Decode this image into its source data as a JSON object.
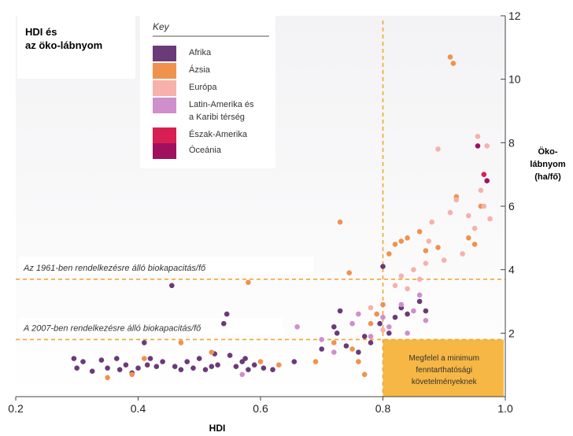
{
  "chart_data": {
    "type": "scatter",
    "title": "HDI és az öko-lábnyom",
    "title_lines": [
      "HDI és",
      "az öko-lábnyom"
    ],
    "xlabel": "HDI",
    "ylabel_lines": [
      "Öko-",
      "lábnyom",
      "(ha/fő)"
    ],
    "xlim": [
      0.2,
      1.0
    ],
    "ylim": [
      0,
      12
    ],
    "xticks": [
      "0.2",
      "0.4",
      "0.6",
      "0.8",
      "1.0"
    ],
    "yticks": [
      "2",
      "4",
      "6",
      "8",
      "10",
      "12"
    ],
    "legend": {
      "title": "Key",
      "placement": "top-left",
      "entries": [
        {
          "lines": [
            "Afrika"
          ],
          "color": "#6b3a78"
        },
        {
          "lines": [
            "Ázsia"
          ],
          "color": "#f0924d"
        },
        {
          "lines": [
            "Európa"
          ],
          "color": "#f6b1ac"
        },
        {
          "lines": [
            "Latin-Amerika és",
            "a Karibi térség"
          ],
          "color": "#cf8fcc"
        },
        {
          "lines": [
            "Észak-Amerika"
          ],
          "color": "#d81f53"
        },
        {
          "lines": [
            "Óceánia"
          ],
          "color": "#a0105f"
        }
      ]
    },
    "reference_lines": [
      {
        "value": 3.7,
        "label": "Az 1961-ben rendelkezésre álló biokapacitás/fő"
      },
      {
        "value": 1.8,
        "label": "A 2007-ben rendelkezésre álló biokapacitás/fő"
      }
    ],
    "vertical_line": 0.8,
    "sustainability_box": {
      "hdi_from": 0.8,
      "footprint_to": 1.8,
      "lines": [
        "Megfelel a minimum",
        "fenntarthatósági",
        "követelményeknek"
      ]
    },
    "grid": false,
    "series": [
      {
        "group": 0,
        "points": [
          [
            0.295,
            1.2
          ],
          [
            0.3,
            0.9
          ],
          [
            0.31,
            1.1
          ],
          [
            0.325,
            0.8
          ],
          [
            0.34,
            1.15
          ],
          [
            0.35,
            0.9
          ],
          [
            0.365,
            1.2
          ],
          [
            0.37,
            0.85
          ],
          [
            0.38,
            1.0
          ],
          [
            0.39,
            0.75
          ],
          [
            0.4,
            0.9
          ],
          [
            0.41,
            1.7
          ],
          [
            0.415,
            1.0
          ],
          [
            0.42,
            1.2
          ],
          [
            0.43,
            0.95
          ],
          [
            0.44,
            1.1
          ],
          [
            0.455,
            3.5
          ],
          [
            0.46,
            0.95
          ],
          [
            0.47,
            0.85
          ],
          [
            0.48,
            1.1
          ],
          [
            0.49,
            0.9
          ],
          [
            0.5,
            1.2
          ],
          [
            0.51,
            0.85
          ],
          [
            0.52,
            0.95
          ],
          [
            0.525,
            1.35
          ],
          [
            0.53,
            1.0
          ],
          [
            0.54,
            2.3
          ],
          [
            0.545,
            2.6
          ],
          [
            0.55,
            1.3
          ],
          [
            0.56,
            0.95
          ],
          [
            0.57,
            1.1
          ],
          [
            0.575,
            1.2
          ],
          [
            0.58,
            0.85
          ],
          [
            0.59,
            1.0
          ],
          [
            0.605,
            0.9
          ],
          [
            0.62,
            0.85
          ],
          [
            0.655,
            1.1
          ],
          [
            0.7,
            1.5
          ],
          [
            0.72,
            2.2
          ],
          [
            0.725,
            2.0
          ],
          [
            0.73,
            2.7
          ],
          [
            0.74,
            1.6
          ],
          [
            0.76,
            1.4
          ],
          [
            0.77,
            1.9
          ],
          [
            0.78,
            1.7
          ],
          [
            0.795,
            2.3
          ],
          [
            0.8,
            4.1
          ],
          [
            0.81,
            2.0
          ],
          [
            0.82,
            2.5
          ],
          [
            0.83,
            2.8
          ],
          [
            0.84,
            2.6
          ],
          [
            0.86,
            3.0
          ],
          [
            0.87,
            2.7
          ]
        ]
      },
      {
        "group": 1,
        "points": [
          [
            0.35,
            0.6
          ],
          [
            0.39,
            0.7
          ],
          [
            0.41,
            1.2
          ],
          [
            0.47,
            1.7
          ],
          [
            0.52,
            1.4
          ],
          [
            0.58,
            3.6
          ],
          [
            0.6,
            1.1
          ],
          [
            0.63,
            1.0
          ],
          [
            0.69,
            1.1
          ],
          [
            0.72,
            1.7
          ],
          [
            0.73,
            5.5
          ],
          [
            0.745,
            3.9
          ],
          [
            0.75,
            1.5
          ],
          [
            0.76,
            1.1
          ],
          [
            0.77,
            0.7
          ],
          [
            0.78,
            2.3
          ],
          [
            0.79,
            2.6
          ],
          [
            0.8,
            2.9
          ],
          [
            0.81,
            4.5
          ],
          [
            0.82,
            4.8
          ],
          [
            0.83,
            4.9
          ],
          [
            0.84,
            5.0
          ],
          [
            0.86,
            5.2
          ],
          [
            0.87,
            4.6
          ],
          [
            0.89,
            4.7
          ],
          [
            0.91,
            10.7
          ],
          [
            0.915,
            10.5
          ],
          [
            0.92,
            6.3
          ],
          [
            0.94,
            5.0
          ],
          [
            0.95,
            4.8
          ],
          [
            0.96,
            6.0
          ]
        ]
      },
      {
        "group": 2,
        "points": [
          [
            0.78,
            2.8
          ],
          [
            0.8,
            2.1
          ],
          [
            0.82,
            3.5
          ],
          [
            0.83,
            3.8
          ],
          [
            0.84,
            3.4
          ],
          [
            0.85,
            4.0
          ],
          [
            0.86,
            3.7
          ],
          [
            0.87,
            4.2
          ],
          [
            0.875,
            4.9
          ],
          [
            0.88,
            5.5
          ],
          [
            0.89,
            7.8
          ],
          [
            0.9,
            4.3
          ],
          [
            0.91,
            5.8
          ],
          [
            0.92,
            6.2
          ],
          [
            0.93,
            4.5
          ],
          [
            0.94,
            5.7
          ],
          [
            0.95,
            5.3
          ],
          [
            0.955,
            8.2
          ],
          [
            0.96,
            6.5
          ],
          [
            0.965,
            6.0
          ],
          [
            0.97,
            7.9
          ],
          [
            0.975,
            5.6
          ]
        ]
      },
      {
        "group": 3,
        "points": [
          [
            0.57,
            0.7
          ],
          [
            0.66,
            2.2
          ],
          [
            0.7,
            1.8
          ],
          [
            0.72,
            1.4
          ],
          [
            0.75,
            2.3
          ],
          [
            0.76,
            2.6
          ],
          [
            0.78,
            1.9
          ],
          [
            0.8,
            2.5
          ],
          [
            0.81,
            2.2
          ],
          [
            0.83,
            2.9
          ],
          [
            0.84,
            2.0
          ],
          [
            0.85,
            2.7
          ],
          [
            0.86,
            3.2
          ],
          [
            0.87,
            2.4
          ]
        ]
      },
      {
        "group": 4,
        "points": [
          [
            0.965,
            7.0
          ]
        ]
      },
      {
        "group": 5,
        "points": [
          [
            0.955,
            7.9
          ],
          [
            0.97,
            6.8
          ]
        ]
      }
    ]
  }
}
